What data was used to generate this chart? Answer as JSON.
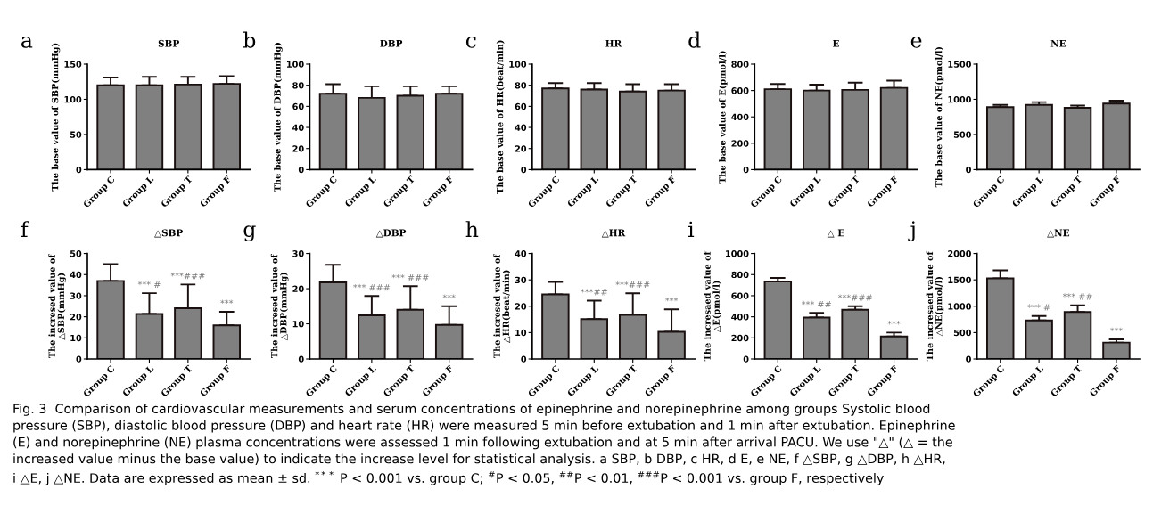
{
  "chart_data": [
    {
      "type": "bar",
      "title": "SBP",
      "ylabel": "The base value of SBP(mmHg)",
      "categories": [
        "Group C",
        "Group L",
        "Group T",
        "Group F"
      ],
      "color": "#808080",
      "values": [
        120,
        120,
        121,
        122
      ],
      "errors": [
        [
          120,
          131
        ],
        [
          120,
          132
        ],
        [
          121,
          132
        ],
        [
          122,
          133
        ]
      ],
      "ylim": [
        0,
        150
      ],
      "yticks": [
        0,
        50,
        100,
        150
      ],
      "annotations": [
        "a"
      ]
    },
    {
      "type": "bar",
      "title": "DBP",
      "ylabel": "The base value of DBP(mmHg)",
      "categories": [
        "Group C",
        "Group L",
        "Group T",
        "Group F"
      ],
      "color": "#808080",
      "values": [
        72,
        68,
        70,
        72
      ],
      "errors": [
        [
          72,
          81
        ],
        [
          68,
          79
        ],
        [
          70,
          79
        ],
        [
          72,
          79
        ]
      ],
      "ylim": [
        0,
        100
      ],
      "yticks": [
        0,
        20,
        40,
        60,
        80,
        100
      ],
      "annotations": [
        "b"
      ]
    },
    {
      "type": "bar",
      "title": "HR",
      "ylabel": "The base value of HR(beat/min)",
      "categories": [
        "Group C",
        "Group L",
        "Group T",
        "Group F"
      ],
      "color": "#808080",
      "values": [
        77,
        76,
        74,
        75
      ],
      "errors": [
        [
          77,
          82
        ],
        [
          76,
          82
        ],
        [
          74,
          81
        ],
        [
          75,
          81
        ]
      ],
      "ylim": [
        0,
        100
      ],
      "yticks": [
        0,
        20,
        40,
        60,
        80,
        100
      ],
      "annotations": [
        "c"
      ]
    },
    {
      "type": "bar",
      "title": "E",
      "ylabel": "The base value of E(pmol/l)",
      "categories": [
        "Group C",
        "Group L",
        "Group T",
        "Group F"
      ],
      "color": "#808080",
      "values": [
        610,
        600,
        605,
        620
      ],
      "errors": [
        [
          610,
          650
        ],
        [
          600,
          645
        ],
        [
          605,
          660
        ],
        [
          620,
          675
        ]
      ],
      "ylim": [
        0,
        800
      ],
      "yticks": [
        0,
        200,
        400,
        600,
        800
      ],
      "annotations": [
        "d"
      ]
    },
    {
      "type": "bar",
      "title": "NE",
      "ylabel": "The base value of NE(pmol/l)",
      "categories": [
        "Group C",
        "Group L",
        "Group T",
        "Group F"
      ],
      "color": "#808080",
      "values": [
        890,
        920,
        880,
        940
      ],
      "errors": [
        [
          890,
          920
        ],
        [
          920,
          960
        ],
        [
          880,
          910
        ],
        [
          940,
          980
        ]
      ],
      "ylim": [
        0,
        1500
      ],
      "yticks": [
        0,
        500,
        1000,
        1500
      ],
      "annotations": [
        "e"
      ]
    },
    {
      "type": "bar",
      "title": "△SBP",
      "ylabel": "The incresed value of\n△SBP(mmHg)",
      "categories": [
        "Group C",
        "Group L",
        "Group T",
        "Group F"
      ],
      "color": "#808080",
      "values": [
        37,
        21.3,
        24.1,
        15.9
      ],
      "errors": [
        [
          37,
          45
        ],
        [
          21.3,
          31.2
        ],
        [
          24.1,
          35.3
        ],
        [
          15.9,
          22.4
        ]
      ],
      "ylim": [
        0,
        50
      ],
      "yticks": [
        0,
        10,
        20,
        30,
        40,
        50
      ],
      "annotations": [
        "f",
        {
          "text": "*** #",
          "x": "Group L",
          "y": 31.2
        },
        {
          "text": "***###",
          "x": "Group T",
          "y": 35.3
        },
        {
          "text": "***",
          "x": "Group F",
          "y": 22.4
        }
      ]
    },
    {
      "type": "bar",
      "title": "△DBP",
      "ylabel": "The incresed value of\n△DBP(mmHg)",
      "categories": [
        "Group C",
        "Group L",
        "Group T",
        "Group F"
      ],
      "color": "#808080",
      "values": [
        21.8,
        12.4,
        14,
        9.7
      ],
      "errors": [
        [
          21.8,
          26.8
        ],
        [
          12.4,
          17.9
        ],
        [
          14,
          20.7
        ],
        [
          9.7,
          15
        ]
      ],
      "ylim": [
        0,
        30
      ],
      "yticks": [
        0,
        10,
        20,
        30
      ],
      "annotations": [
        "g",
        {
          "text": "*** ###",
          "x": "Group L",
          "y": 17.9
        },
        {
          "text": "*** ###",
          "x": "Group T",
          "y": 20.7
        },
        {
          "text": "***",
          "x": "Group F",
          "y": 15
        }
      ]
    },
    {
      "type": "bar",
      "title": "△HR",
      "ylabel": "The incresed value of\n△HR(beat/min)",
      "categories": [
        "Group C",
        "Group L",
        "Group T",
        "Group F"
      ],
      "color": "#808080",
      "values": [
        24.5,
        15.1,
        16.7,
        10.3
      ],
      "errors": [
        [
          24.5,
          29.2
        ],
        [
          15.1,
          22.1
        ],
        [
          16.7,
          24.9
        ],
        [
          10.3,
          18.8
        ]
      ],
      "ylim": [
        0,
        40
      ],
      "yticks": [
        0,
        10,
        20,
        30,
        40
      ],
      "annotations": [
        "h",
        {
          "text": "***##",
          "x": "Group L",
          "y": 22.1
        },
        {
          "text": "***###",
          "x": "Group T",
          "y": 24.9
        },
        {
          "text": "***",
          "x": "Group F",
          "y": 18.8
        }
      ]
    },
    {
      "type": "bar",
      "title": "△ E",
      "ylabel": "The incresaed value of\n△E(pmol/l)",
      "categories": [
        "Group C",
        "Group L",
        "Group T",
        "Group F"
      ],
      "color": "#808080",
      "values": [
        735,
        392,
        466,
        213
      ],
      "errors": [
        [
          735,
          769
        ],
        [
          392,
          437
        ],
        [
          466,
          500
        ],
        [
          213,
          250
        ]
      ],
      "ylim": [
        0,
        1000
      ],
      "yticks": [
        0,
        200,
        400,
        600,
        800,
        1000
      ],
      "annotations": [
        "i",
        {
          "text": "*** ##",
          "x": "Group L",
          "y": 437
        },
        {
          "text": "***###",
          "x": "Group T",
          "y": 500
        },
        {
          "text": "***",
          "x": "Group F",
          "y": 250
        }
      ]
    },
    {
      "type": "bar",
      "title": "△NE",
      "ylabel": "The incresaed value of\n△NE(pmol/l)",
      "categories": [
        "Group C",
        "Group L",
        "Group T",
        "Group F"
      ],
      "color": "#808080",
      "values": [
        1530,
        730,
        890,
        310
      ],
      "errors": [
        [
          1530,
          1680
        ],
        [
          730,
          815
        ],
        [
          890,
          1020
        ],
        [
          310,
          370
        ]
      ],
      "ylim": [
        0,
        2000
      ],
      "yticks": [
        0,
        500,
        1000,
        1500,
        2000
      ],
      "annotations": [
        "j",
        {
          "text": "*** #",
          "x": "Group L",
          "y": 815
        },
        {
          "text": "*** ##",
          "x": "Group T",
          "y": 1020
        },
        {
          "text": "***",
          "x": "Group F",
          "y": 370
        },
        "Fig. 3  Comparison of cardiovascular measurements and serum concentrations of epinephrine and norepinephrine among groups Systolic blood\npressure (SBP), diastolic blood pressure (DBP) and heart rate (HR) were measured 5 min before extubation and 1 min after extubation. Epinephrine\n(E) and norepinephrine (NE) plasma concentrations were assessed 1 min following extubation and at 5 min after arrival PACU. We use \"△\" (△ = the\nincreased value minus the base value) to indicate the increase level for statistical analysis. a SBP, b DBP, c HR, d E, e NE, f △SBP, g △DBP, h △HR,\ni △E, j △NE. Data are expressed as mean ± sd. $^{***}$ P < 0.001 vs. group C; $^{#}$P < 0.05, $^{##}$P < 0.01, $^{###}$P < 0.001 vs. group F, respectively"
      ]
    }
  ]
}
